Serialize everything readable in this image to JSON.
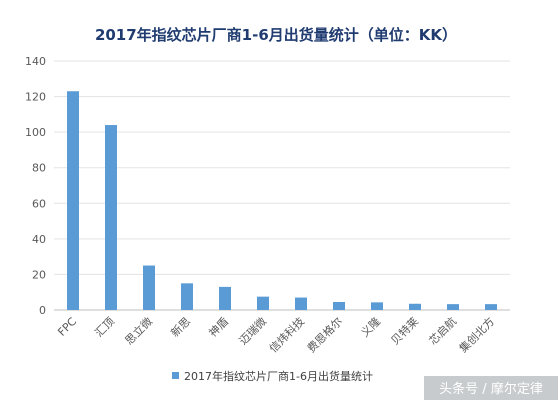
{
  "chart_data": {
    "type": "bar",
    "title": "2017年指纹芯片厂商1-6月出货量统计（单位：KK）",
    "categories": [
      "FPC",
      "汇顶",
      "思立微",
      "新思",
      "神盾",
      "迈瑞微",
      "信炜科技",
      "费恩格尔",
      "义隆",
      "贝特莱",
      "芯启航",
      "集创北方"
    ],
    "values": [
      123,
      104,
      25,
      15,
      13,
      7.5,
      7,
      4.5,
      4.3,
      3.5,
      3.3,
      3.3
    ],
    "ylim": [
      0,
      140
    ],
    "yticks": [
      0,
      20,
      40,
      60,
      80,
      100,
      120,
      140
    ],
    "grid": true,
    "legend": {
      "position": "bottom",
      "entries": [
        "2017年指纹芯片厂商1-6月出货量统计"
      ]
    },
    "bar_color": "#5b9bd5"
  },
  "watermark": "头条号 / 摩尔定律"
}
